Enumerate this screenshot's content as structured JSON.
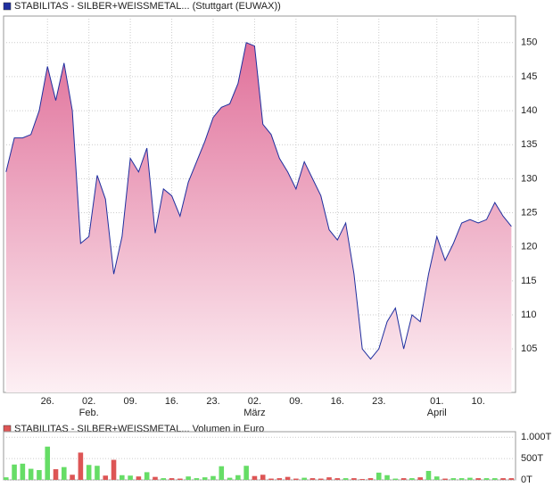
{
  "chart_data": [
    {
      "type": "area",
      "title": "STABILITAS - SILBER+WEISSMETAL... (Stuttgart (EUWAX))",
      "color": "#1f2f9f",
      "fill_top": "#e0709a",
      "fill_bottom": "#fdf0f4",
      "x": [
        0,
        1,
        2,
        3,
        4,
        5,
        6,
        7,
        8,
        9,
        10,
        11,
        12,
        13,
        14,
        15,
        16,
        17,
        18,
        19,
        20,
        21,
        22,
        23,
        24,
        25,
        26,
        27,
        28,
        29,
        30,
        31,
        32,
        33,
        34,
        35,
        36,
        37,
        38,
        39,
        40,
        41,
        42,
        43,
        44,
        45,
        46,
        47,
        48,
        49,
        50,
        51,
        52,
        53,
        54,
        55,
        56,
        57,
        58,
        59,
        60,
        61
      ],
      "values": [
        131,
        136,
        136,
        136.5,
        140,
        146.5,
        141.5,
        147,
        140,
        120.5,
        121.5,
        130.5,
        127,
        116,
        121.5,
        133,
        131,
        134.5,
        122,
        128.5,
        127.5,
        124.5,
        129.5,
        132.5,
        135.5,
        139,
        140.5,
        141,
        144,
        150,
        149.5,
        138,
        136.5,
        133,
        131,
        128.5,
        132.5,
        130,
        127.5,
        122.5,
        121,
        123.5,
        116,
        105,
        103.5,
        105,
        109,
        111,
        105,
        110,
        109,
        116,
        121.5,
        118,
        120.5,
        123.5,
        124,
        123.5,
        124,
        126.5,
        124.5,
        123
      ],
      "xlim": [
        -0.3,
        61.5
      ],
      "ylim": [
        98.6,
        153.9
      ],
      "yticks": [
        105,
        110,
        115,
        120,
        125,
        130,
        135,
        140,
        145,
        150
      ],
      "xticks": [
        {
          "value": 5,
          "label": "26."
        },
        {
          "value": 10,
          "label": "02."
        },
        {
          "value": 15,
          "label": "09."
        },
        {
          "value": 20,
          "label": "16."
        },
        {
          "value": 25,
          "label": "23."
        },
        {
          "value": 30,
          "label": "02."
        },
        {
          "value": 35,
          "label": "09."
        },
        {
          "value": 40,
          "label": "16."
        },
        {
          "value": 45,
          "label": "23."
        },
        {
          "value": 52,
          "label": "01."
        },
        {
          "value": 57,
          "label": "10."
        }
      ],
      "month_labels": [
        {
          "value": 10,
          "label": "Feb."
        },
        {
          "value": 30,
          "label": "März"
        },
        {
          "value": 52,
          "label": "April"
        }
      ],
      "grid": true
    },
    {
      "type": "bar",
      "title": "STABILITAS - SILBER+WEISSMETAL... Volumen in Euro",
      "up_color": "#66dd66",
      "down_color": "#dd5555",
      "x": [
        0,
        1,
        2,
        3,
        4,
        5,
        6,
        7,
        8,
        9,
        10,
        11,
        12,
        13,
        14,
        15,
        16,
        17,
        18,
        19,
        20,
        21,
        22,
        23,
        24,
        25,
        26,
        27,
        28,
        29,
        30,
        31,
        32,
        33,
        34,
        35,
        36,
        37,
        38,
        39,
        40,
        41,
        42,
        43,
        44,
        45,
        46,
        47,
        48,
        49,
        50,
        51,
        52,
        53,
        54,
        55,
        56,
        57,
        58,
        59,
        60,
        61
      ],
      "values": [
        60,
        360,
        380,
        260,
        230,
        780,
        250,
        300,
        120,
        640,
        350,
        330,
        100,
        470,
        110,
        100,
        80,
        180,
        70,
        40,
        40,
        30,
        80,
        40,
        60,
        90,
        320,
        50,
        110,
        330,
        90,
        120,
        30,
        40,
        70,
        30,
        50,
        40,
        30,
        60,
        40,
        40,
        40,
        20,
        40,
        170,
        110,
        30,
        40,
        40,
        60,
        210,
        80,
        30,
        40,
        40,
        50,
        40,
        40,
        40,
        40,
        40
      ],
      "xlim": [
        -0.3,
        61.5
      ],
      "ylim": [
        0,
        1130
      ],
      "yticks": [
        {
          "value": 1000,
          "label": "1.000T"
        },
        {
          "value": 500,
          "label": "500T"
        },
        {
          "value": 0,
          "label": "0T"
        }
      ],
      "grid": true
    }
  ]
}
